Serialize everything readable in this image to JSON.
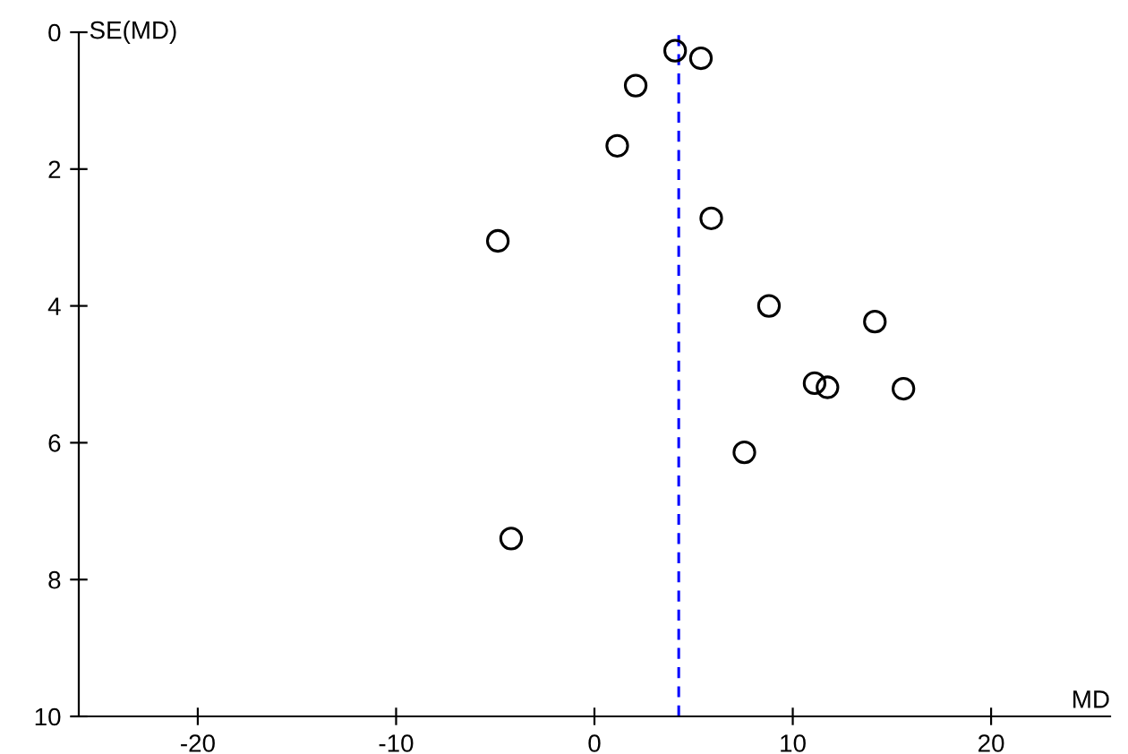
{
  "chart_data": {
    "type": "scatter",
    "xlabel": "MD",
    "ylabel": "SE(MD)",
    "x": [
      4.07,
      5.37,
      2.08,
      1.15,
      5.89,
      -4.87,
      8.8,
      14.14,
      11.1,
      11.75,
      15.58,
      7.56,
      -4.2
    ],
    "series": [
      {
        "color": "#000000",
        "values": [
          0.27,
          0.38,
          0.78,
          1.66,
          2.72,
          3.05,
          4.0,
          4.23,
          5.13,
          5.19,
          5.21,
          6.14,
          7.4
        ]
      }
    ],
    "marker": "circle",
    "xlim": [
      -26,
      26
    ],
    "xticks": [
      -20,
      -10,
      0,
      10,
      20
    ],
    "ylim": [
      10,
      0
    ],
    "yticks": [
      0,
      2,
      4,
      6,
      8,
      10
    ],
    "ref_lines": [
      {
        "axis": "x",
        "value": 4.25,
        "color": "#0000ff",
        "line_style": "dashed"
      }
    ],
    "grid": false,
    "legend": false
  }
}
